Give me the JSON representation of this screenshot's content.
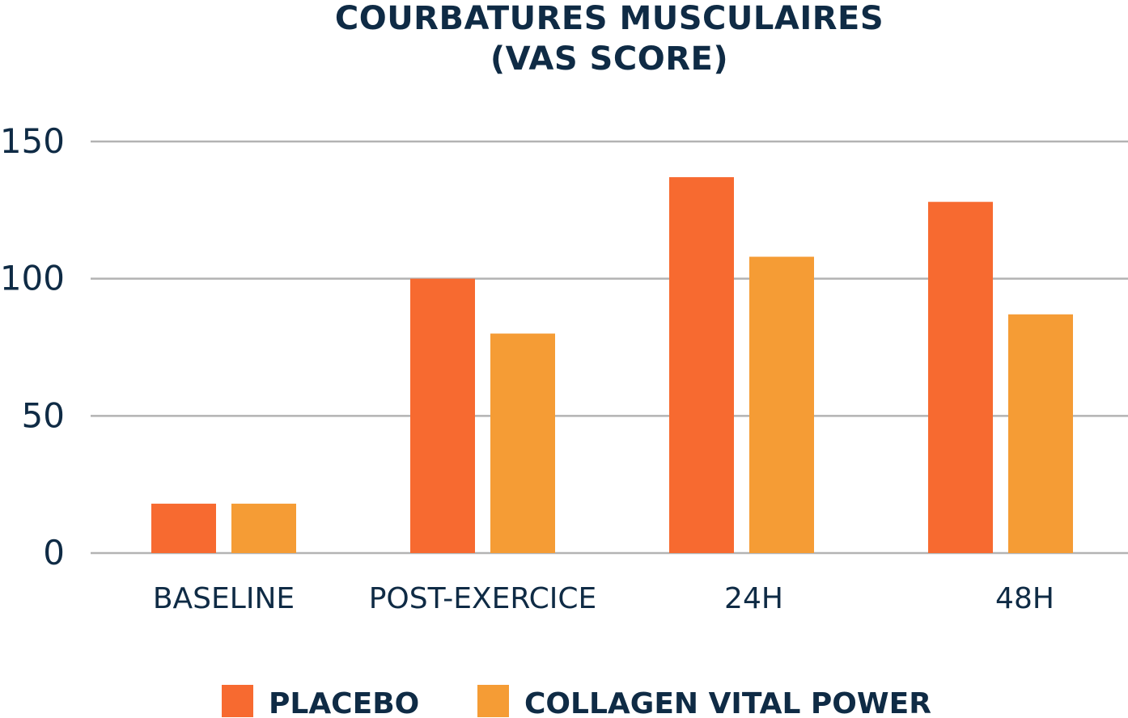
{
  "chart_data": {
    "type": "bar",
    "title_lines": [
      "COURBATURES MUSCULAIRES",
      "(VAS SCORE)"
    ],
    "categories": [
      "BASELINE",
      "POST-EXERCICE",
      "24H",
      "48H"
    ],
    "series": [
      {
        "name": "PLACEBO",
        "color": "#f76a30",
        "values": [
          18,
          100,
          137,
          128
        ]
      },
      {
        "name": "COLLAGEN VITAL POWER",
        "color": "#f59c35",
        "values": [
          18,
          80,
          108,
          87
        ]
      }
    ],
    "y_ticks": [
      "150",
      "100",
      "50",
      "0"
    ],
    "ylim": [
      0,
      150
    ],
    "grid": true,
    "legend_position": "bottom-center"
  }
}
